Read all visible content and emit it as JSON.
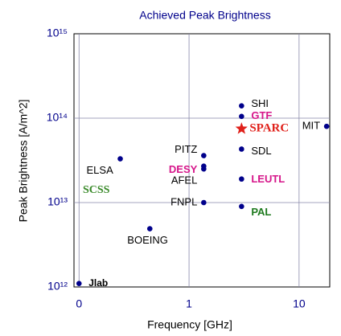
{
  "chart_data": {
    "type": "scatter",
    "title": "Achieved Peak Brightness",
    "x_label": "Frequency [GHz]",
    "y_label": "Peak Brightness [A/m^2]",
    "x_log": true,
    "y_log": true,
    "grid": true,
    "xlim": [
      0.09,
      19
    ],
    "ylim": [
      1000000000000.0,
      1000000000000000.0
    ],
    "xticks": [
      {
        "value": 0.1,
        "label": "0"
      },
      1,
      10
    ],
    "yticks": [
      {
        "value": 1000000000000.0,
        "label": "10¹²"
      },
      {
        "value": 10000000000000.0,
        "label": "10¹³"
      },
      {
        "value": 100000000000000.0,
        "label": "10¹⁴"
      },
      {
        "value": 1000000000000000.0,
        "label": "10¹⁵"
      }
    ],
    "color": "#00008b",
    "labels": [
      "Jlab",
      "ELSA",
      "BOEING",
      "PITZ",
      "DESY",
      "AFEL",
      "FNPL",
      "SHI",
      "GTF",
      "SPARC",
      "SDL",
      "LEUTL",
      "PAL",
      "MIT"
    ],
    "label_colors": [
      "#000000",
      "#000000",
      "#000000",
      "#000000",
      "#d6168a",
      "#000000",
      "#000000",
      "#000000",
      "#d6168a",
      "#e0201a",
      "#000000",
      "#d6168a",
      "#1d7a1d",
      "#000000"
    ],
    "markers": [
      "circle",
      "circle",
      "circle",
      "circle",
      "circle",
      "circle",
      "circle",
      "circle",
      "circle",
      "star",
      "circle",
      "circle",
      "circle",
      "circle"
    ],
    "star_color": "#e0201a",
    "x": [
      0.1,
      0.237,
      0.44,
      1.36,
      1.36,
      1.36,
      1.36,
      3,
      3,
      3,
      3,
      3,
      3,
      17.8
    ],
    "values": [
      1100000000000.0,
      33000000000000.0,
      4900000000000.0,
      36000000000000.0,
      27000000000000.0,
      25000000000000.0,
      10000000000000.0,
      140000000000000.0,
      105000000000000.0,
      75000000000000.0,
      43000000000000.0,
      19000000000000.0,
      9000000000000.0,
      80000000000000.0
    ],
    "annotation": "SCSS",
    "annotation_color": "#3a8a2a"
  }
}
